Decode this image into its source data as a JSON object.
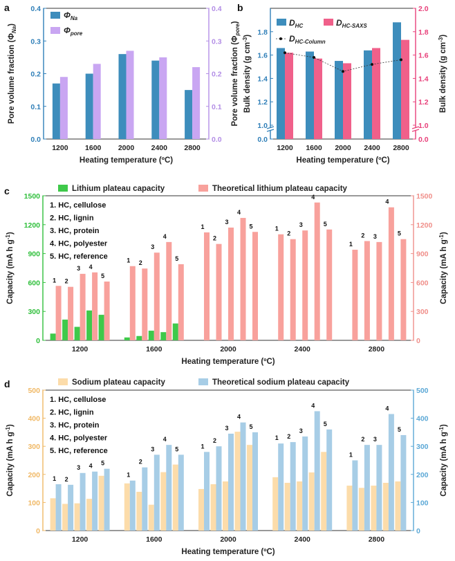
{
  "chart_data": [
    {
      "id": "a",
      "panel_label": "a",
      "type": "bar",
      "categories": [
        "1200",
        "1600",
        "2000",
        "2400",
        "2800"
      ],
      "series": [
        {
          "name": "Φ",
          "subscript": "Na",
          "color": "#3d8dbc",
          "values": [
            0.17,
            0.2,
            0.26,
            0.24,
            0.15
          ]
        },
        {
          "name": "Φ",
          "subscript": "pore",
          "color": "#c9a6f2",
          "values": [
            0.19,
            0.23,
            0.27,
            0.25,
            0.22
          ]
        }
      ],
      "xlabel": "Heating temperature (ºC)",
      "ylabel_left": "Pore volume fraction (Φ",
      "ylabel_left_sub": "Na",
      "ylabel_right": "Pore volume fraction (Φ",
      "ylabel_right_sub": "pore",
      "ylim": [
        0,
        0.4
      ],
      "yticks_left": [
        "0.0",
        "0.1",
        "0.2",
        "0.3",
        "0.4"
      ],
      "yticks_right": [
        "0.0",
        "0.1",
        "0.2",
        "0.3",
        "0.4"
      ],
      "right_axis_color": "#b38ee6",
      "left_axis_color": "#2f7fb8"
    },
    {
      "id": "b",
      "panel_label": "b",
      "type": "bar",
      "categories": [
        "1200",
        "1600",
        "2000",
        "2400",
        "2800"
      ],
      "series": [
        {
          "name": "D",
          "subscript": "HC",
          "color": "#3d8dbc",
          "values": [
            1.66,
            1.63,
            1.55,
            1.64,
            1.88
          ]
        },
        {
          "name": "D",
          "subscript": "HC-SAXS",
          "color": "#f0608a",
          "values": [
            1.62,
            1.57,
            1.53,
            1.66,
            1.73
          ]
        },
        {
          "name": "D",
          "subscript": "HC-Column",
          "color": "#222222",
          "type": "line",
          "values": [
            1.62,
            1.58,
            1.46,
            1.52,
            1.56
          ]
        }
      ],
      "xlabel": "Heating temperature (ºC)",
      "ylabel_left": "Bulk density (g cm",
      "ylabel_right": "Bulk density (g cm",
      "ylabel_unit_sup": "-3",
      "ylim_upper": [
        1.0,
        2.0
      ],
      "ylim_lower": [
        0,
        0.2
      ],
      "yticks_left": [
        "0.0",
        "1.0",
        "1.2",
        "1.4",
        "1.6",
        "1.8"
      ],
      "yticks_right": [
        "0.0",
        "1.0",
        "1.2",
        "1.4",
        "1.6",
        "1.8",
        "2.0"
      ],
      "right_axis_color": "#e8407a",
      "left_axis_color": "#2f7fb8"
    },
    {
      "id": "c",
      "panel_label": "c",
      "type": "bar",
      "categories": [
        "1200",
        "1600",
        "2000",
        "2400",
        "2800"
      ],
      "series": [
        {
          "name": "Lithium plateau capacity",
          "color": "#3fc94a",
          "values": [
            [
              70,
              215,
              140,
              310,
              265
            ],
            [
              30,
              45,
              100,
              85,
              175
            ],
            [
              0,
              0,
              0,
              0,
              0
            ],
            [
              0,
              0,
              0,
              0,
              0
            ],
            [
              0,
              0,
              0,
              0,
              0
            ]
          ]
        },
        {
          "name": "Theoretical lithium plateau capacity",
          "color": "#f8a19c",
          "values": [
            [
              565,
              555,
              690,
              705,
              610
            ],
            [
              770,
              745,
              910,
              1020,
              790
            ],
            [
              1120,
              1000,
              1170,
              1270,
              1125
            ],
            [
              1100,
              1050,
              1140,
              1430,
              1150
            ],
            [
              940,
              1030,
              1020,
              1380,
              1050
            ]
          ]
        }
      ],
      "sample_numbers": [
        "1",
        "2",
        "3",
        "4",
        "5"
      ],
      "legend_list": [
        "1. HC, cellulose",
        "2. HC, lignin",
        "3. HC, protein",
        "4. HC, polyester",
        "5. HC, reference"
      ],
      "xlabel": "Heating temperature (ºC)",
      "ylabel_left": "Capacity (mA h g",
      "ylabel_right": "Capacity (mA h g",
      "ylabel_unit_sup": "-1",
      "ylim": [
        0,
        1500
      ],
      "yticks_left": [
        "0",
        "300",
        "600",
        "900",
        "1200",
        "1500"
      ],
      "yticks_right": [
        "0",
        "300",
        "600",
        "900",
        "1200",
        "1500"
      ],
      "left_axis_color": "#2fbf3b",
      "right_axis_color": "#f08f8a"
    },
    {
      "id": "d",
      "panel_label": "d",
      "type": "bar",
      "categories": [
        "1200",
        "1600",
        "2000",
        "2400",
        "2800"
      ],
      "series": [
        {
          "name": "Sodium plateau capacity",
          "color": "#fcdcaa",
          "values": [
            [
              115,
              95,
              97,
              113,
              195
            ],
            [
              168,
              138,
              92,
              208,
              235
            ],
            [
              148,
              165,
              175,
              352,
              305
            ],
            [
              190,
              170,
              175,
              207,
              280
            ],
            [
              160,
              152,
              160,
              170,
              175
            ]
          ]
        },
        {
          "name": "Theoretical sodium plateau capacity",
          "color": "#a7cde6",
          "values": [
            [
              165,
              163,
              205,
              210,
              220
            ],
            [
              178,
              225,
              270,
              305,
              270
            ],
            [
              280,
              300,
              345,
              385,
              350
            ],
            [
              310,
              315,
              335,
              425,
              360
            ],
            [
              250,
              305,
              305,
              415,
              340
            ]
          ]
        }
      ],
      "sample_numbers": [
        "1",
        "2",
        "3",
        "4",
        "5"
      ],
      "legend_list": [
        "1. HC, cellulose",
        "2. HC, lignin",
        "3. HC, protein",
        "4. HC, polyester",
        "5. HC, reference"
      ],
      "xlabel": "Heating temperature (ºC)",
      "ylabel_left": "Capacity (mA h g",
      "ylabel_right": "Capacity (mA h g",
      "ylabel_unit_sup": "-1",
      "ylim": [
        0,
        500
      ],
      "yticks_left": [
        "0",
        "100",
        "200",
        "300",
        "400",
        "500"
      ],
      "yticks_right": [
        "0",
        "100",
        "200",
        "300",
        "400",
        "500"
      ],
      "left_axis_color": "#f0b865",
      "right_axis_color": "#5ba8d6"
    }
  ]
}
